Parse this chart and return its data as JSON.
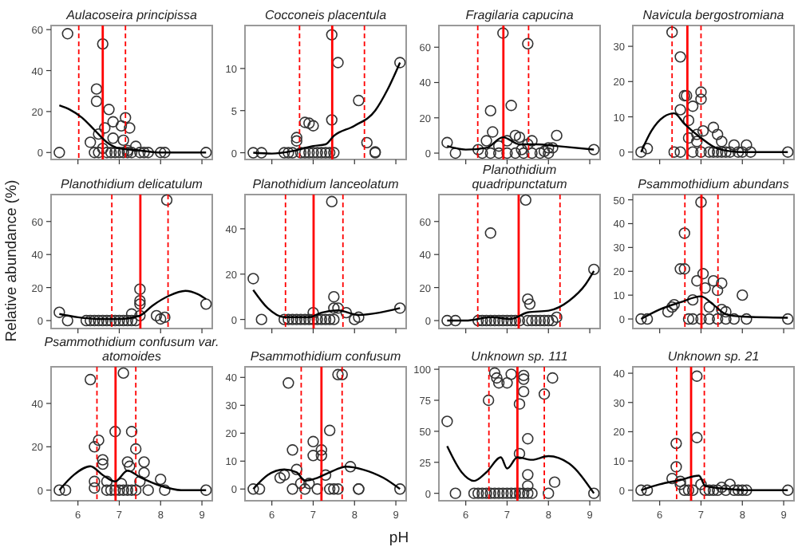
{
  "chart_data": [
    {
      "type": "scatter",
      "title": "Aulacoseira principissa",
      "xlim": [
        5.35,
        9.25
      ],
      "xticks": [
        6,
        7,
        8,
        9
      ],
      "ylim": [
        -3.4,
        62
      ],
      "yticks": [
        0,
        20,
        40,
        60
      ],
      "tick_labels": "y",
      "series": [
        {
          "marker": "circle",
          "color": "#333333",
          "x": [
            5.55,
            5.75,
            6.6,
            6.45,
            6.45,
            6.65,
            6.75,
            6.85,
            6.5,
            6.3,
            6.6,
            6.85,
            7.05,
            7.15,
            7.25,
            7.1,
            7.4,
            7.2,
            6.4,
            6.5,
            6.7,
            6.8,
            6.9,
            7.0,
            7.1,
            7.2,
            7.3,
            7.5,
            7.6,
            7.7,
            8.0,
            8.1,
            9.1
          ],
          "values": [
            0,
            58,
            53,
            31,
            25,
            12,
            21,
            15,
            9,
            5,
            2,
            7,
            13,
            17,
            12,
            6,
            3,
            1,
            0,
            0,
            0,
            0,
            0,
            0,
            0,
            0,
            0,
            0,
            0,
            0,
            0,
            0,
            0
          ]
        },
        {
          "type": "line",
          "color": "#000000",
          "x": [
            5.55,
            5.8,
            6.1,
            6.4,
            6.7,
            7.0,
            7.5,
            8.0,
            9.1
          ],
          "values": [
            23,
            21,
            17,
            11,
            5,
            2,
            1,
            0,
            0
          ]
        }
      ],
      "ref_lines": [
        {
          "axis": "x",
          "value": 6.6,
          "color": "#ff0000",
          "line_style": "solid"
        },
        {
          "axis": "x",
          "value": 6.02,
          "color": "#ff0000",
          "line_style": "dashed"
        },
        {
          "axis": "x",
          "value": 7.15,
          "color": "#ff0000",
          "line_style": "dashed"
        }
      ]
    },
    {
      "type": "scatter",
      "title": "Cocconeis placentula",
      "xlim": [
        5.35,
        9.25
      ],
      "xticks": [
        6,
        7,
        8,
        9
      ],
      "ylim": [
        -0.8,
        15.1
      ],
      "yticks": [
        0,
        5,
        10
      ],
      "tick_labels": "y",
      "series": [
        {
          "marker": "circle",
          "color": "#333333",
          "x": [
            5.55,
            5.75,
            6.3,
            6.4,
            6.5,
            6.7,
            6.8,
            6.9,
            7.0,
            7.1,
            7.2,
            7.3,
            7.4,
            7.5,
            6.6,
            6.6,
            6.8,
            6.9,
            7.0,
            7.45,
            7.45,
            7.6,
            8.1,
            8.3,
            8.5,
            8.5,
            9.1
          ],
          "values": [
            0,
            0,
            0,
            0,
            0,
            0,
            0,
            0,
            0,
            0,
            0,
            0,
            0,
            0,
            1.8,
            1.4,
            3.6,
            3.5,
            3.2,
            3.9,
            14,
            10.7,
            6.2,
            1.2,
            0,
            0.1,
            10.7
          ]
        },
        {
          "type": "line",
          "color": "#000000",
          "x": [
            5.55,
            6.0,
            6.5,
            7.0,
            7.3,
            7.5,
            8.0,
            8.5,
            8.8,
            9.1
          ],
          "values": [
            0,
            -0.1,
            0.2,
            0.8,
            1,
            2,
            3.2,
            5,
            7.5,
            10.7
          ]
        }
      ],
      "ref_lines": [
        {
          "axis": "x",
          "value": 7.46,
          "color": "#ff0000",
          "line_style": "solid"
        },
        {
          "axis": "x",
          "value": 6.67,
          "color": "#ff0000",
          "line_style": "dashed"
        },
        {
          "axis": "x",
          "value": 8.24,
          "color": "#ff0000",
          "line_style": "dashed"
        }
      ]
    },
    {
      "type": "scatter",
      "title": "Fragilaria capucina",
      "xlim": [
        5.35,
        9.25
      ],
      "xticks": [
        6,
        7,
        8,
        9
      ],
      "ylim": [
        -3.6,
        72.3
      ],
      "yticks": [
        0,
        20,
        40,
        60
      ],
      "tick_labels": "y",
      "series": [
        {
          "marker": "circle",
          "color": "#333333",
          "x": [
            5.55,
            5.75,
            6.3,
            6.5,
            6.6,
            6.65,
            6.8,
            6.9,
            7.0,
            7.1,
            7.2,
            7.3,
            7.35,
            7.5,
            7.5,
            7.6,
            7.9,
            8.0,
            8.1,
            8.2,
            9.1,
            6.4,
            6.6,
            6.8,
            7.0,
            7.2,
            7.4,
            7.6,
            7.8,
            8.0
          ],
          "values": [
            6,
            0,
            2,
            7,
            24,
            12,
            4,
            68,
            7,
            27,
            10,
            9,
            2,
            62,
            5,
            7,
            1,
            3,
            3,
            10,
            2,
            0,
            0,
            0,
            0,
            0,
            0,
            0,
            0,
            0
          ]
        },
        {
          "type": "line",
          "color": "#000000",
          "x": [
            5.55,
            6.0,
            6.5,
            6.9,
            7.3,
            7.7,
            8.2,
            9.1
          ],
          "values": [
            4,
            2,
            3,
            9,
            5,
            5,
            4,
            2
          ]
        }
      ],
      "ref_lines": [
        {
          "axis": "x",
          "value": 6.91,
          "color": "#ff0000",
          "line_style": "solid"
        },
        {
          "axis": "x",
          "value": 6.29,
          "color": "#ff0000",
          "line_style": "dashed"
        },
        {
          "axis": "x",
          "value": 7.52,
          "color": "#ff0000",
          "line_style": "dashed"
        }
      ]
    },
    {
      "type": "scatter",
      "title": "Navicula bergostromiana",
      "xlim": [
        5.35,
        9.25
      ],
      "xticks": [
        6,
        7,
        8,
        9
      ],
      "ylim": [
        -2.1,
        35.9
      ],
      "yticks": [
        0,
        10,
        20,
        30
      ],
      "tick_labels": "y",
      "series": [
        {
          "marker": "circle",
          "color": "#333333",
          "x": [
            5.55,
            5.7,
            6.3,
            6.35,
            6.5,
            6.5,
            6.6,
            6.65,
            6.7,
            6.7,
            6.8,
            6.9,
            6.9,
            7.0,
            7.0,
            7.05,
            7.3,
            7.4,
            7.5,
            7.8,
            8.1,
            8.2,
            9.1,
            6.5,
            6.8,
            7.0,
            7.2,
            7.3,
            7.4,
            7.5,
            7.6,
            7.7,
            7.9,
            8.0
          ],
          "values": [
            0,
            1,
            34,
            0,
            27,
            12,
            16,
            16,
            9,
            4,
            13,
            5,
            3,
            17,
            15,
            6,
            7,
            5,
            3,
            2,
            2,
            0,
            0,
            0,
            0,
            0,
            0,
            0,
            0,
            0,
            0,
            0,
            0,
            0
          ]
        },
        {
          "type": "line",
          "color": "#000000",
          "x": [
            5.55,
            5.8,
            6.1,
            6.35,
            6.6,
            7.0,
            7.4,
            8.0,
            9.1
          ],
          "values": [
            0,
            6,
            10,
            11,
            8,
            4,
            1,
            0,
            0
          ]
        }
      ],
      "ref_lines": [
        {
          "axis": "x",
          "value": 6.67,
          "color": "#ff0000",
          "line_style": "solid"
        },
        {
          "axis": "x",
          "value": 6.3,
          "color": "#ff0000",
          "line_style": "dashed"
        },
        {
          "axis": "x",
          "value": 7.0,
          "color": "#ff0000",
          "line_style": "dashed"
        }
      ]
    },
    {
      "type": "scatter",
      "title": "Planothidium delicatulum",
      "ylabel": "Relative abundance (%)",
      "xlim": [
        5.35,
        9.25
      ],
      "xticks": [
        6,
        7,
        8,
        9
      ],
      "ylim": [
        -4.8,
        76.3
      ],
      "yticks": [
        0,
        20,
        40,
        60
      ],
      "tick_labels": "y",
      "series": [
        {
          "marker": "circle",
          "color": "#333333",
          "x": [
            5.55,
            5.75,
            6.2,
            6.3,
            6.4,
            6.5,
            6.6,
            6.7,
            6.8,
            6.9,
            7.0,
            7.1,
            7.2,
            7.3,
            7.4,
            7.3,
            7.5,
            7.5,
            7.5,
            7.5,
            7.9,
            8.0,
            8.1,
            8.15,
            9.1
          ],
          "values": [
            5,
            0,
            0,
            0,
            0,
            0,
            0,
            0,
            0,
            0,
            0,
            0,
            0,
            0,
            0,
            4,
            19,
            12,
            10,
            3,
            3,
            1,
            2,
            73,
            10
          ]
        },
        {
          "type": "line",
          "color": "#000000",
          "x": [
            5.55,
            6.0,
            6.5,
            7.0,
            7.5,
            7.8,
            8.2,
            8.6,
            8.9,
            9.1
          ],
          "values": [
            4,
            2,
            1,
            1,
            3,
            9,
            15,
            18,
            16,
            13
          ]
        }
      ],
      "ref_lines": [
        {
          "axis": "x",
          "value": 7.51,
          "color": "#ff0000",
          "line_style": "solid"
        },
        {
          "axis": "x",
          "value": 6.82,
          "color": "#ff0000",
          "line_style": "dashed"
        },
        {
          "axis": "x",
          "value": 8.18,
          "color": "#ff0000",
          "line_style": "dashed"
        }
      ]
    },
    {
      "type": "scatter",
      "title": "Planothidium lanceolatum",
      "xlim": [
        5.35,
        9.25
      ],
      "xticks": [
        6,
        7,
        8,
        9
      ],
      "ylim": [
        -4,
        55.1
      ],
      "yticks": [
        0,
        20,
        40
      ],
      "tick_labels": "y",
      "series": [
        {
          "marker": "circle",
          "color": "#333333",
          "x": [
            5.55,
            5.75,
            6.3,
            6.4,
            6.5,
            6.6,
            6.7,
            6.8,
            6.9,
            7.0,
            7.1,
            7.2,
            7.3,
            7.4,
            7.5,
            7.0,
            7.45,
            7.5,
            7.5,
            7.6,
            7.8,
            8.0,
            8.1,
            9.1
          ],
          "values": [
            18,
            0,
            0,
            0,
            0,
            0,
            0,
            0,
            0,
            0,
            0,
            0,
            0,
            0,
            0,
            3,
            52,
            10,
            5,
            5,
            3,
            0,
            1,
            5
          ]
        },
        {
          "type": "line",
          "color": "#000000",
          "x": [
            5.55,
            5.9,
            6.3,
            6.9,
            7.2,
            7.6,
            8.1,
            8.6,
            9.1
          ],
          "values": [
            13,
            5,
            1,
            1,
            3,
            4,
            2,
            3,
            5
          ]
        }
      ],
      "ref_lines": [
        {
          "axis": "x",
          "value": 7.01,
          "color": "#ff0000",
          "line_style": "solid"
        },
        {
          "axis": "x",
          "value": 6.33,
          "color": "#ff0000",
          "line_style": "dashed"
        },
        {
          "axis": "x",
          "value": 7.72,
          "color": "#ff0000",
          "line_style": "dashed"
        }
      ]
    },
    {
      "type": "scatter",
      "title": "Planothidium quadripunctatum",
      "xlim": [
        5.35,
        9.25
      ],
      "xticks": [
        6,
        7,
        8,
        9
      ],
      "ylim": [
        -4.8,
        76.3
      ],
      "yticks": [
        0,
        20,
        40,
        60
      ],
      "tick_labels": "y",
      "series": [
        {
          "marker": "circle",
          "color": "#333333",
          "x": [
            5.55,
            5.75,
            6.6,
            7.45,
            7.5,
            7.55,
            8.2,
            9.1,
            6.3,
            6.4,
            6.5,
            6.6,
            6.7,
            6.8,
            6.9,
            7.0,
            7.1,
            7.2,
            7.3,
            7.5,
            7.6,
            7.7,
            7.8,
            7.9,
            8.0,
            8.1
          ],
          "values": [
            0,
            0,
            53,
            73,
            13,
            10,
            2,
            31,
            0,
            0,
            0,
            0,
            0,
            0,
            0,
            0,
            0,
            0,
            0,
            0,
            0,
            0,
            0,
            0,
            0,
            0
          ]
        },
        {
          "type": "line",
          "color": "#000000",
          "x": [
            5.55,
            6.0,
            6.6,
            7.1,
            7.5,
            8.0,
            8.5,
            8.9,
            9.1
          ],
          "values": [
            0,
            0,
            2,
            1,
            5,
            6,
            12,
            22,
            30
          ]
        }
      ],
      "ref_lines": [
        {
          "axis": "x",
          "value": 7.28,
          "color": "#ff0000",
          "line_style": "solid"
        },
        {
          "axis": "x",
          "value": 6.29,
          "color": "#ff0000",
          "line_style": "dashed"
        },
        {
          "axis": "x",
          "value": 8.28,
          "color": "#ff0000",
          "line_style": "dashed"
        }
      ]
    },
    {
      "type": "scatter",
      "title": "Psammothidium abundans",
      "xlim": [
        5.35,
        9.25
      ],
      "xticks": [
        6,
        7,
        8,
        9
      ],
      "ylim": [
        -4,
        52.2
      ],
      "yticks": [
        0,
        10,
        20,
        30,
        40,
        50
      ],
      "tick_labels": "y",
      "series": [
        {
          "marker": "circle",
          "color": "#333333",
          "x": [
            5.55,
            5.7,
            6.3,
            6.35,
            6.2,
            6.5,
            6.6,
            6.6,
            6.7,
            6.8,
            6.9,
            7.0,
            7.05,
            7.1,
            7.2,
            7.3,
            7.4,
            7.5,
            7.5,
            7.6,
            8.0,
            8.1,
            9.1,
            6.8,
            7.0,
            7.2,
            7.4,
            7.6,
            7.8
          ],
          "values": [
            0,
            0,
            5,
            6,
            3,
            21,
            21,
            36,
            0,
            8,
            16,
            49,
            19,
            13,
            5,
            16,
            12,
            15,
            4,
            3,
            10,
            0,
            0,
            0,
            0,
            0,
            0,
            0,
            0
          ]
        },
        {
          "type": "line",
          "color": "#000000",
          "x": [
            5.55,
            6.0,
            6.5,
            7.0,
            7.3,
            7.6,
            8.0,
            9.1
          ],
          "values": [
            0,
            4,
            7,
            9.5,
            6,
            2,
            1,
            0.5
          ]
        }
      ],
      "ref_lines": [
        {
          "axis": "x",
          "value": 7.01,
          "color": "#ff0000",
          "line_style": "solid"
        },
        {
          "axis": "x",
          "value": 6.61,
          "color": "#ff0000",
          "line_style": "dashed"
        },
        {
          "axis": "x",
          "value": 7.41,
          "color": "#ff0000",
          "line_style": "dashed"
        }
      ]
    },
    {
      "type": "scatter",
      "title": "Psammothidium confusum var. atomoides",
      "xlim": [
        5.35,
        9.25
      ],
      "xticks": [
        6,
        7,
        8,
        9
      ],
      "ylim": [
        -4.9,
        56.9
      ],
      "yticks": [
        0,
        20,
        40
      ],
      "series": [
        {
          "marker": "circle",
          "color": "#333333",
          "x": [
            5.55,
            5.7,
            6.3,
            6.4,
            6.5,
            6.4,
            6.4,
            6.6,
            6.6,
            6.7,
            6.9,
            7.1,
            7.05,
            7.2,
            7.25,
            7.3,
            7.4,
            7.5,
            7.6,
            7.6,
            8.0,
            8.1,
            9.1,
            6.7,
            6.8,
            6.9,
            7.0,
            7.1,
            7.2,
            7.3,
            7.4,
            7.7
          ],
          "values": [
            0,
            0,
            51,
            20,
            23,
            4,
            1,
            14,
            12,
            4,
            27,
            54,
            3,
            13,
            11,
            27,
            19,
            4,
            13,
            8,
            5,
            0,
            0,
            0,
            0,
            0,
            0,
            0,
            0,
            0,
            0,
            0
          ]
        },
        {
          "type": "line",
          "color": "#000000",
          "x": [
            5.55,
            5.9,
            6.3,
            6.6,
            6.9,
            7.2,
            7.5,
            8.0,
            8.5,
            9.1
          ],
          "values": [
            0,
            7,
            11,
            7,
            4,
            9,
            6,
            2,
            0,
            0
          ]
        }
      ],
      "ref_lines": [
        {
          "axis": "x",
          "value": 6.91,
          "color": "#ff0000",
          "line_style": "solid"
        },
        {
          "axis": "x",
          "value": 6.46,
          "color": "#ff0000",
          "line_style": "dashed"
        },
        {
          "axis": "x",
          "value": 7.4,
          "color": "#ff0000",
          "line_style": "dashed"
        }
      ]
    },
    {
      "type": "scatter",
      "title": "Psammothidium confusum",
      "xlabel": "pH",
      "xlim": [
        5.35,
        9.25
      ],
      "xticks": [
        6,
        7,
        8,
        9
      ],
      "ylim": [
        -4.2,
        43.8
      ],
      "yticks": [
        0,
        10,
        20,
        30,
        40
      ],
      "series": [
        {
          "marker": "circle",
          "color": "#333333",
          "x": [
            5.55,
            5.7,
            6.2,
            6.3,
            6.4,
            6.5,
            6.6,
            6.7,
            6.9,
            7.0,
            7.0,
            7.2,
            7.2,
            7.3,
            7.4,
            7.6,
            7.7,
            7.9,
            8.1,
            8.1,
            9.1,
            6.5,
            6.8,
            7.1,
            7.4,
            7.5,
            7.6
          ],
          "values": [
            0,
            0,
            4,
            5,
            38,
            14,
            7,
            2,
            2,
            17,
            12,
            14,
            12,
            5,
            21,
            41,
            41,
            8,
            0,
            0,
            0,
            0,
            0,
            0,
            0,
            0,
            0
          ]
        },
        {
          "type": "line",
          "color": "#000000",
          "x": [
            5.55,
            5.9,
            6.3,
            6.6,
            6.8,
            7.1,
            7.4,
            7.8,
            8.2,
            8.7,
            9.1
          ],
          "values": [
            0,
            5,
            7,
            6,
            3,
            4,
            6,
            8,
            7,
            4,
            0
          ]
        }
      ],
      "ref_lines": [
        {
          "axis": "x",
          "value": 7.2,
          "color": "#ff0000",
          "line_style": "solid"
        },
        {
          "axis": "x",
          "value": 6.71,
          "color": "#ff0000",
          "line_style": "dashed"
        },
        {
          "axis": "x",
          "value": 7.7,
          "color": "#ff0000",
          "line_style": "dashed"
        }
      ]
    },
    {
      "type": "scatter",
      "title": "Unknown sp. 111",
      "xlim": [
        5.35,
        9.25
      ],
      "xticks": [
        6,
        7,
        8,
        9
      ],
      "ylim": [
        -6,
        102
      ],
      "yticks": [
        0,
        25,
        50,
        75,
        100
      ],
      "series": [
        {
          "marker": "circle",
          "color": "#333333",
          "x": [
            5.55,
            5.75,
            6.55,
            6.7,
            6.75,
            6.8,
            7.0,
            7.1,
            7.3,
            7.4,
            7.4,
            7.4,
            7.3,
            7.5,
            7.5,
            7.5,
            7.9,
            8.0,
            8.1,
            8.15,
            9.1,
            6.2,
            6.3,
            6.4,
            6.5,
            6.6,
            6.7,
            6.8,
            6.9,
            7.0,
            7.1,
            7.2,
            7.3,
            7.4,
            7.5,
            7.6
          ],
          "values": [
            58,
            0,
            75,
            97,
            93,
            89,
            89,
            96,
            72,
            95,
            92,
            82,
            32,
            44,
            15,
            6,
            80,
            0,
            93,
            9,
            0,
            0,
            0,
            0,
            0,
            0,
            0,
            0,
            0,
            0,
            0,
            0,
            0,
            0,
            0,
            0
          ]
        },
        {
          "type": "line",
          "color": "#000000",
          "x": [
            5.55,
            5.9,
            6.2,
            6.5,
            6.85,
            7.0,
            7.25,
            7.6,
            8.0,
            8.5,
            9.1
          ],
          "values": [
            38,
            17,
            10,
            17,
            29,
            20,
            29,
            27,
            30,
            24,
            0
          ]
        }
      ],
      "ref_lines": [
        {
          "axis": "x",
          "value": 7.25,
          "color": "#ff0000",
          "line_style": "solid"
        },
        {
          "axis": "x",
          "value": 6.56,
          "color": "#ff0000",
          "line_style": "dashed"
        },
        {
          "axis": "x",
          "value": 7.9,
          "color": "#ff0000",
          "line_style": "dashed"
        }
      ]
    },
    {
      "type": "scatter",
      "title": "Unknown sp. 21",
      "xlim": [
        5.35,
        9.25
      ],
      "xticks": [
        6,
        7,
        8,
        9
      ],
      "ylim": [
        -3.6,
        42.2
      ],
      "yticks": [
        0,
        10,
        20,
        30,
        40
      ],
      "series": [
        {
          "marker": "circle",
          "color": "#333333",
          "x": [
            5.55,
            5.7,
            6.3,
            6.4,
            6.4,
            6.5,
            6.5,
            6.9,
            6.9,
            7.0,
            7.5,
            7.7,
            9.1,
            6.6,
            6.7,
            6.8,
            7.1,
            7.2,
            7.3,
            7.4,
            7.6,
            7.8,
            7.9,
            8.0,
            8.1
          ],
          "values": [
            0,
            0,
            4,
            16,
            8,
            3,
            2,
            39,
            18,
            2,
            1,
            2,
            0,
            0,
            0,
            0,
            0,
            0,
            0,
            0,
            0,
            0,
            0,
            0,
            0
          ]
        },
        {
          "type": "line",
          "color": "#000000",
          "x": [
            5.55,
            6.0,
            6.5,
            6.95,
            7.1,
            7.6,
            8.2,
            9.1
          ],
          "values": [
            0,
            2,
            3.5,
            5,
            1.5,
            0.5,
            0,
            0
          ]
        }
      ],
      "ref_lines": [
        {
          "axis": "x",
          "value": 6.76,
          "color": "#ff0000",
          "line_style": "solid"
        },
        {
          "axis": "x",
          "value": 6.41,
          "color": "#ff0000",
          "line_style": "dashed"
        },
        {
          "axis": "x",
          "value": 7.08,
          "color": "#ff0000",
          "line_style": "dashed"
        }
      ]
    }
  ]
}
